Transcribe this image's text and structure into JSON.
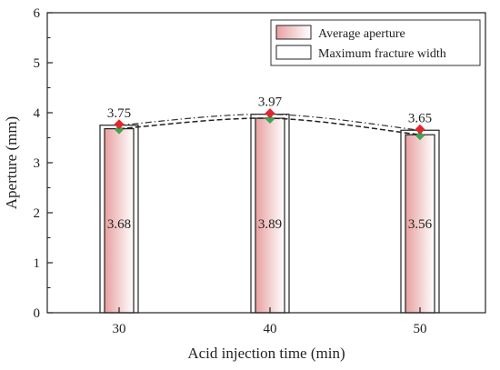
{
  "chart_data": {
    "type": "bar",
    "xlabel": "Acid injection time (min)",
    "ylabel": "Aperture (mm)",
    "ylim": [
      0,
      6
    ],
    "yticks": [
      0,
      1,
      2,
      3,
      4,
      5,
      6
    ],
    "categories": [
      "30",
      "40",
      "50"
    ],
    "grid": false,
    "legend_position": "top-right",
    "series": [
      {
        "name": "Average aperture",
        "values": [
          3.68,
          3.89,
          3.56
        ],
        "labels": [
          "3.68",
          "3.89",
          "3.56"
        ],
        "fill": "gradient-red",
        "marker": "green-diamond",
        "line_style": "dashed"
      },
      {
        "name": "Maximum fracture width",
        "values": [
          3.75,
          3.97,
          3.65
        ],
        "labels": [
          "3.75",
          "3.97",
          "3.65"
        ],
        "fill": "white",
        "marker": "red-diamond",
        "line_style": "dash-dot"
      }
    ],
    "colors": {
      "avg_fill_edge": "#e8a0a0",
      "avg_fill_center": "#ffffff",
      "avg_marker": "#3aa655",
      "max_marker": "#e0262e",
      "axis": "#222222"
    }
  }
}
